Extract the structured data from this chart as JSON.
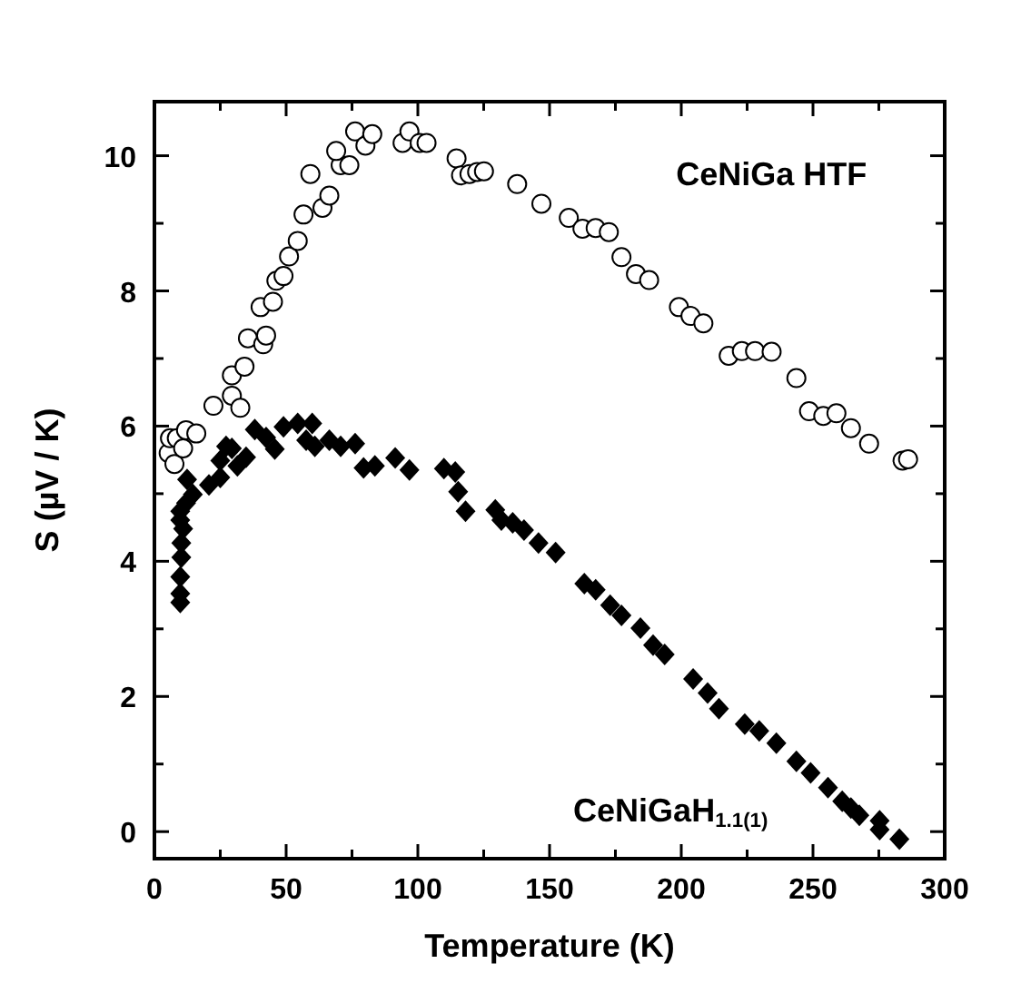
{
  "chart_data": {
    "type": "scatter",
    "xlabel": "Temperature (K)",
    "ylabel": "S (µV / K)",
    "xlim": [
      0,
      300
    ],
    "ylim": [
      -0.4,
      10.8
    ],
    "xticks": [
      0,
      {
        "value": 25,
        "label": null
      },
      50,
      {
        "value": 75,
        "label": null
      },
      100,
      {
        "value": 125,
        "label": null
      },
      150,
      {
        "value": 175,
        "label": null
      },
      200,
      {
        "value": 225,
        "label": null
      },
      250,
      {
        "value": 275,
        "label": null
      },
      300
    ],
    "yticks": [
      0,
      {
        "value": 1,
        "label": null
      },
      2,
      {
        "value": 3,
        "label": null
      },
      4,
      {
        "value": 5,
        "label": null
      },
      6,
      {
        "value": 7,
        "label": null
      },
      8,
      {
        "value": 9,
        "label": null
      },
      10
    ],
    "grid": false,
    "legend": "top right",
    "series": [
      {
        "name": "CeNiGa HTF",
        "color": "#000000",
        "marker": "circle",
        "x": [
          5.4,
          5.9,
          7.6,
          8.5,
          10.9,
          12,
          15.9,
          22.4,
          29.4,
          32.6,
          29.4,
          34.2,
          35.5,
          41.3,
          42.4,
          40.3,
          45,
          46.3,
          49,
          51.1,
          54.4,
          56.6,
          63.8,
          66.4,
          59.2,
          70.7,
          74,
          69,
          76.2,
          80.1,
          82.7,
          94.2,
          96.8,
          100.7,
          103.3,
          114.7,
          116.4,
          119.6,
          122.5,
          125.1,
          137.7,
          146.9,
          157.3,
          162.5,
          167.5,
          172.5,
          177.3,
          182.8,
          187.8,
          199.1,
          203.5,
          208.4,
          218,
          223,
          228,
          234.3,
          243.7,
          248.5,
          253.9,
          258.9,
          264.4,
          271.3,
          284,
          286.1
        ],
        "values": [
          5.6,
          5.82,
          5.44,
          5.82,
          5.67,
          5.94,
          5.89,
          6.3,
          6.45,
          6.27,
          6.75,
          6.88,
          7.3,
          7.21,
          7.34,
          7.76,
          7.84,
          8.15,
          8.22,
          8.51,
          8.74,
          9.13,
          9.23,
          9.41,
          9.73,
          9.86,
          9.86,
          10.07,
          10.36,
          10.15,
          10.32,
          10.19,
          10.36,
          10.19,
          10.19,
          9.96,
          9.71,
          9.73,
          9.76,
          9.77,
          9.58,
          9.29,
          9.08,
          8.92,
          8.93,
          8.87,
          8.5,
          8.25,
          8.16,
          7.76,
          7.63,
          7.52,
          7.04,
          7.11,
          7.11,
          7.1,
          6.71,
          6.22,
          6.15,
          6.19,
          5.97,
          5.74,
          5.49,
          5.51
        ]
      },
      {
        "name": "CeNiGaH$_{1.1(1)}$",
        "color": "#000000",
        "marker": "diamond",
        "x": [
          9.8,
          9.8,
          9.8,
          10.2,
          10.2,
          10.9,
          9.8,
          9.8,
          12,
          14.6,
          12.4,
          20.7,
          25,
          25,
          27.2,
          29.4,
          31.5,
          34.8,
          38.1,
          42.4,
          45.7,
          49,
          54.4,
          59.9,
          57.6,
          60.9,
          66.4,
          70.7,
          76.2,
          79.4,
          83.7,
          91.4,
          96.8,
          109.9,
          115.3,
          118.1,
          114.2,
          129.4,
          131.7,
          136,
          140.3,
          145.8,
          152.3,
          163.2,
          167.5,
          173,
          177.3,
          184.5,
          189.3,
          193.7,
          204.5,
          210,
          214.3,
          224.1,
          229.6,
          236.1,
          243.7,
          249.1,
          255.7,
          261.1,
          264.4,
          267.6,
          275.3,
          275.3,
          282.8
        ],
        "values": [
          3.39,
          3.52,
          3.77,
          4.06,
          4.27,
          4.48,
          4.61,
          4.74,
          4.86,
          4.99,
          5.21,
          5.13,
          5.24,
          5.49,
          5.7,
          5.67,
          5.41,
          5.54,
          5.95,
          5.83,
          5.66,
          5.99,
          6.04,
          6.04,
          5.79,
          5.7,
          5.79,
          5.7,
          5.74,
          5.38,
          5.41,
          5.53,
          5.35,
          5.37,
          5.03,
          4.74,
          5.32,
          4.76,
          4.61,
          4.57,
          4.46,
          4.27,
          4.13,
          3.67,
          3.58,
          3.35,
          3.2,
          3.01,
          2.76,
          2.62,
          2.26,
          2.05,
          1.82,
          1.59,
          1.49,
          1.31,
          1.04,
          0.87,
          0.65,
          0.45,
          0.35,
          0.24,
          0.16,
          0.03,
          -0.11
        ]
      }
    ]
  }
}
